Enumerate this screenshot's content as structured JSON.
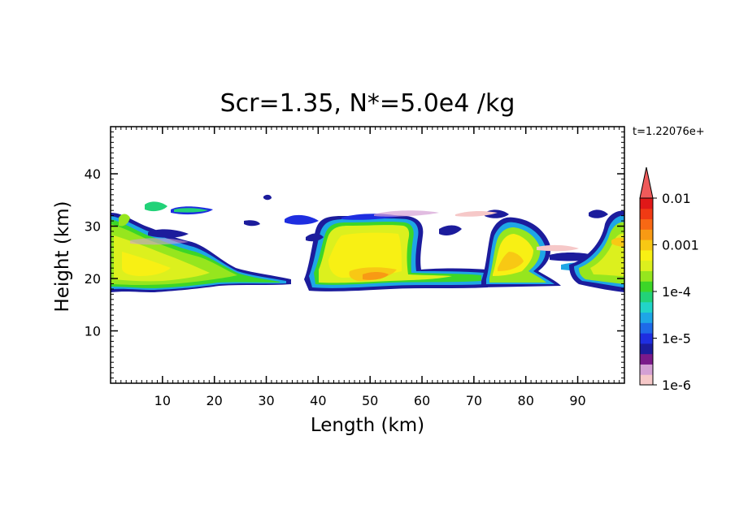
{
  "chart_data": {
    "type": "heatmap",
    "title": "Scr=1.35, N*=5.0e4 /kg",
    "time_label": "t=1.22076e+",
    "xlabel": "Length  (km)",
    "ylabel": "Height  (km)",
    "xlim": [
      0,
      99
    ],
    "ylim": [
      0,
      49
    ],
    "x_ticks": [
      10,
      20,
      30,
      40,
      50,
      60,
      70,
      80,
      90
    ],
    "y_ticks": [
      10,
      20,
      30,
      40
    ],
    "x_tick_labels": [
      "10",
      "20",
      "30",
      "40",
      "50",
      "60",
      "70",
      "80",
      "90"
    ],
    "y_tick_labels": [
      "10",
      "20",
      "30",
      "40"
    ],
    "colorbar": {
      "scale": "log",
      "range": [
        1e-06,
        0.01
      ],
      "extend": "max",
      "tick_labels": [
        "0.01",
        "0.001",
        "1e-4",
        "1e-5",
        "1e-6"
      ],
      "tick_values": [
        0.01,
        0.001,
        0.0001,
        1e-05,
        1e-06
      ],
      "colors": [
        "#f6c8c8",
        "#d4a0d4",
        "#7a1a8a",
        "#1c1c9c",
        "#1e2ee0",
        "#1e6ae8",
        "#1ea6e6",
        "#22d4c8",
        "#22d278",
        "#3cd628",
        "#96e61e",
        "#dcf01e",
        "#f8f014",
        "#f8c814",
        "#f89a14",
        "#f86814",
        "#f03a14",
        "#e01818"
      ],
      "extend_color": "#ef5a5a"
    },
    "cloud_regions": [
      {
        "x_range": [
          0,
          20
        ],
        "y_range": [
          18,
          34
        ],
        "peak": 0.0006
      },
      {
        "x_range": [
          20,
          35
        ],
        "y_range": [
          19.5,
          22
        ],
        "peak": 0.0001
      },
      {
        "x_range": [
          36,
          62
        ],
        "y_range": [
          18,
          32
        ],
        "peak": 0.003
      },
      {
        "x_range": [
          62,
          82
        ],
        "y_range": [
          19,
          22
        ],
        "peak": 0.0005
      },
      {
        "x_range": [
          72,
          85
        ],
        "y_range": [
          20,
          32
        ],
        "peak": 0.003
      },
      {
        "x_range": [
          88,
          99
        ],
        "y_range": [
          18,
          32
        ],
        "peak": 0.0008
      }
    ]
  }
}
